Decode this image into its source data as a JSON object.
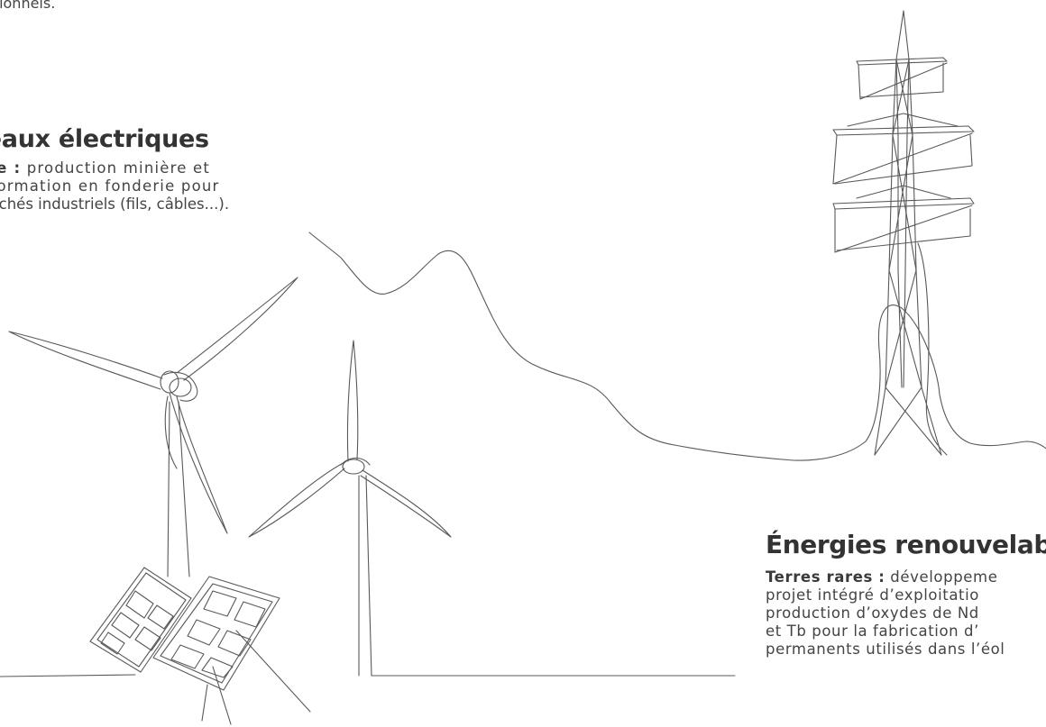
{
  "intro": {
    "fragment": "ctionnels."
  },
  "networks": {
    "title": "seaux électriques",
    "copper_label": "ivre :",
    "line1_rest": " production minière et",
    "line2": "nsformation en fonderie pour",
    "line3": "oouchés industriels (fils, câbles...)."
  },
  "renewables": {
    "title": "Énergies renouvelabl",
    "rare_earth_label": "Terres rares :",
    "line1_rest": " développeme",
    "line2": "projet intégré d’exploitatio",
    "line3": "production d’oxydes de Nd",
    "line4": "et Tb pour la fabrication d’",
    "line5": "permanents utilisés dans l’éol"
  },
  "colors": {
    "stroke": "#595959",
    "text": "#444444",
    "heading": "#333333",
    "background": "#ffffff"
  },
  "icons": [
    "electricity-pylon-icon",
    "wind-turbine-icon",
    "solar-panel-icon",
    "power-cable-line-icon"
  ]
}
